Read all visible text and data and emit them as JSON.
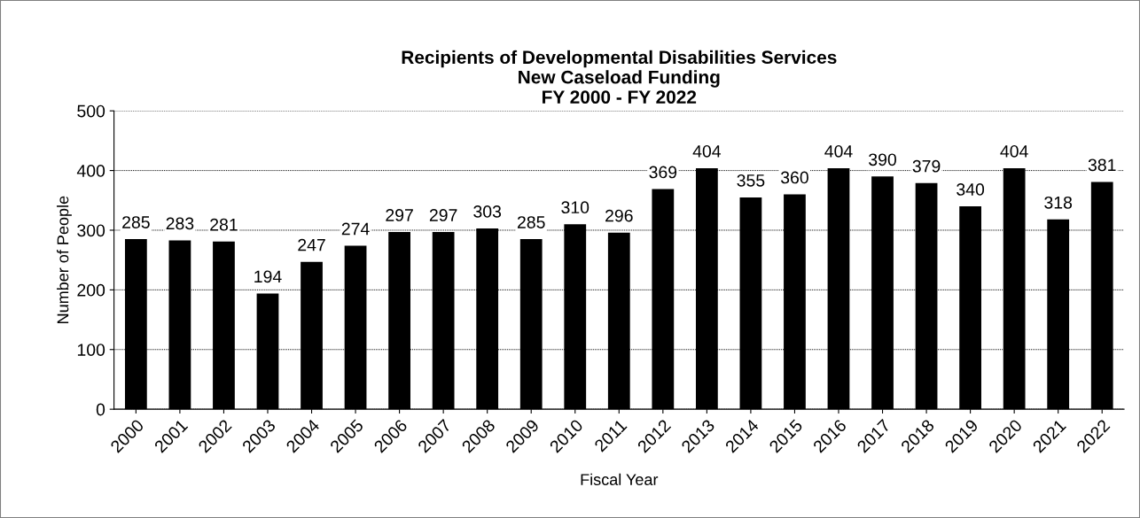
{
  "chart_data": {
    "type": "bar",
    "title": "Recipients of Developmental Disabilities Services\nNew Caseload Funding\nFY 2000 - FY 2022",
    "xlabel": "Fiscal Year",
    "ylabel": "Number of People",
    "categories": [
      "2000",
      "2001",
      "2002",
      "2003",
      "2004",
      "2005",
      "2006",
      "2007",
      "2008",
      "2009",
      "2010",
      "2011",
      "2012",
      "2013",
      "2014",
      "2015",
      "2016",
      "2017",
      "2018",
      "2019",
      "2020",
      "2021",
      "2022"
    ],
    "values": [
      285,
      283,
      281,
      194,
      247,
      274,
      297,
      297,
      303,
      285,
      310,
      296,
      369,
      404,
      355,
      360,
      404,
      390,
      379,
      340,
      404,
      318,
      381
    ],
    "color": "#000000",
    "ylim": [
      0,
      500
    ],
    "yticks": [
      0,
      100,
      200,
      300,
      400,
      500
    ],
    "grid": "y",
    "data_labels": true
  }
}
